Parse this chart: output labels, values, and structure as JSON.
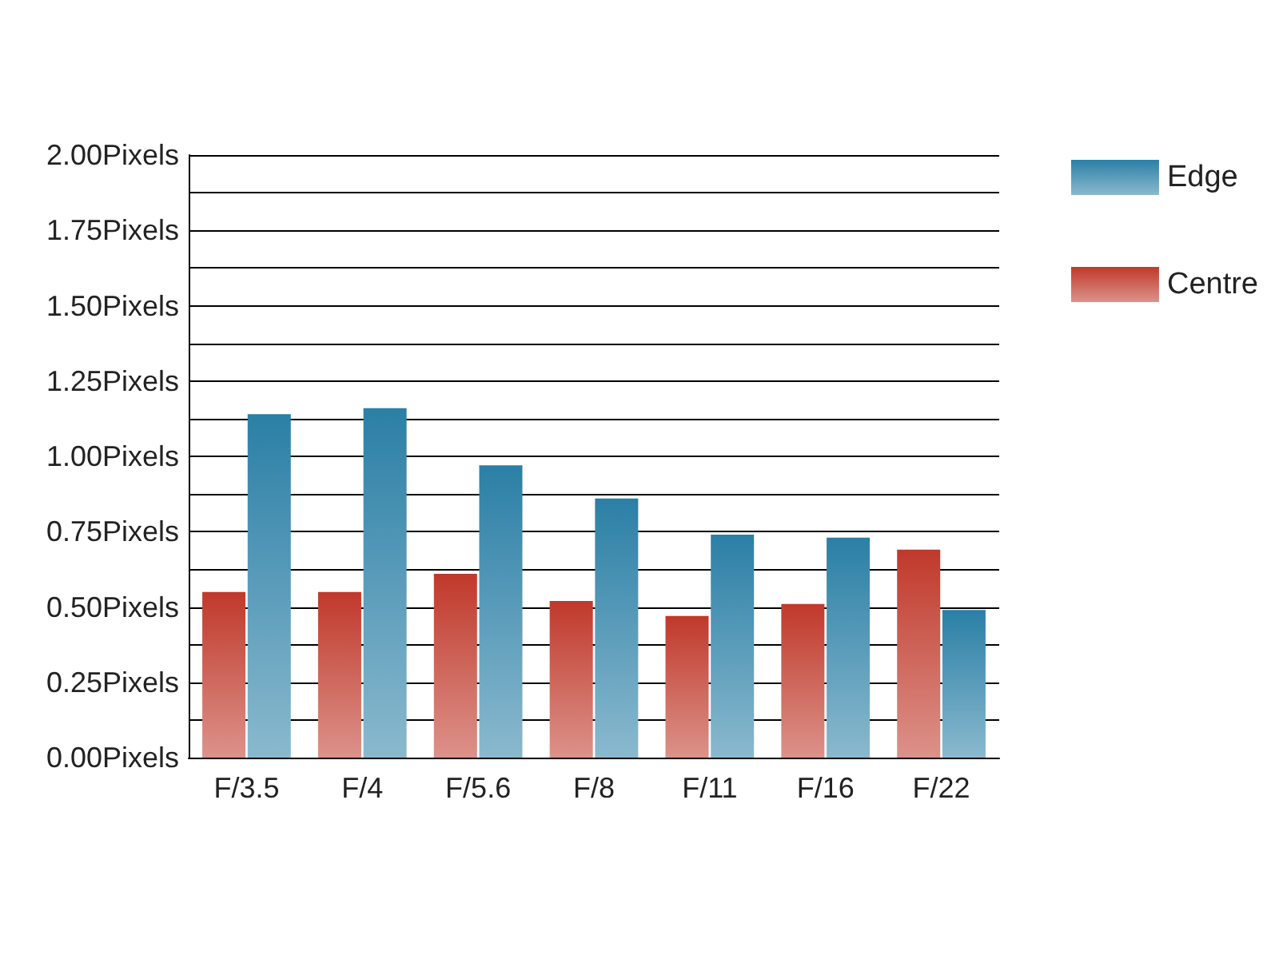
{
  "chart_data": {
    "type": "bar",
    "categories": [
      "F/3.5",
      "F/4",
      "F/5.6",
      "F/8",
      "F/11",
      "F/16",
      "F/22"
    ],
    "series": [
      {
        "name": "Centre",
        "color": "#c0392b",
        "values": [
          0.55,
          0.55,
          0.61,
          0.52,
          0.47,
          0.51,
          0.69
        ]
      },
      {
        "name": "Edge",
        "color": "#2b7fa6",
        "values": [
          1.14,
          1.16,
          0.97,
          0.86,
          0.74,
          0.73,
          0.49
        ]
      }
    ],
    "ylim": [
      0,
      2
    ],
    "yticks": [
      {
        "value": 0,
        "label": "0.00Pixels"
      },
      {
        "value": 0.125,
        "label": null
      },
      {
        "value": 0.25,
        "label": "0.25Pixels"
      },
      {
        "value": 0.375,
        "label": null
      },
      {
        "value": 0.5,
        "label": "0.50Pixels"
      },
      {
        "value": 0.625,
        "label": null
      },
      {
        "value": 0.75,
        "label": "0.75Pixels"
      },
      {
        "value": 0.875,
        "label": null
      },
      {
        "value": 1,
        "label": "1.00Pixels"
      },
      {
        "value": 1.125,
        "label": null
      },
      {
        "value": 1.25,
        "label": "1.25Pixels"
      },
      {
        "value": 1.375,
        "label": null
      },
      {
        "value": 1.5,
        "label": "1.50Pixels"
      },
      {
        "value": 1.625,
        "label": null
      },
      {
        "value": 1.75,
        "label": "1.75Pixels"
      },
      {
        "value": 1.875,
        "label": null
      },
      {
        "value": 2,
        "label": "2.00Pixels"
      }
    ],
    "grid": "y",
    "legend": "right"
  }
}
